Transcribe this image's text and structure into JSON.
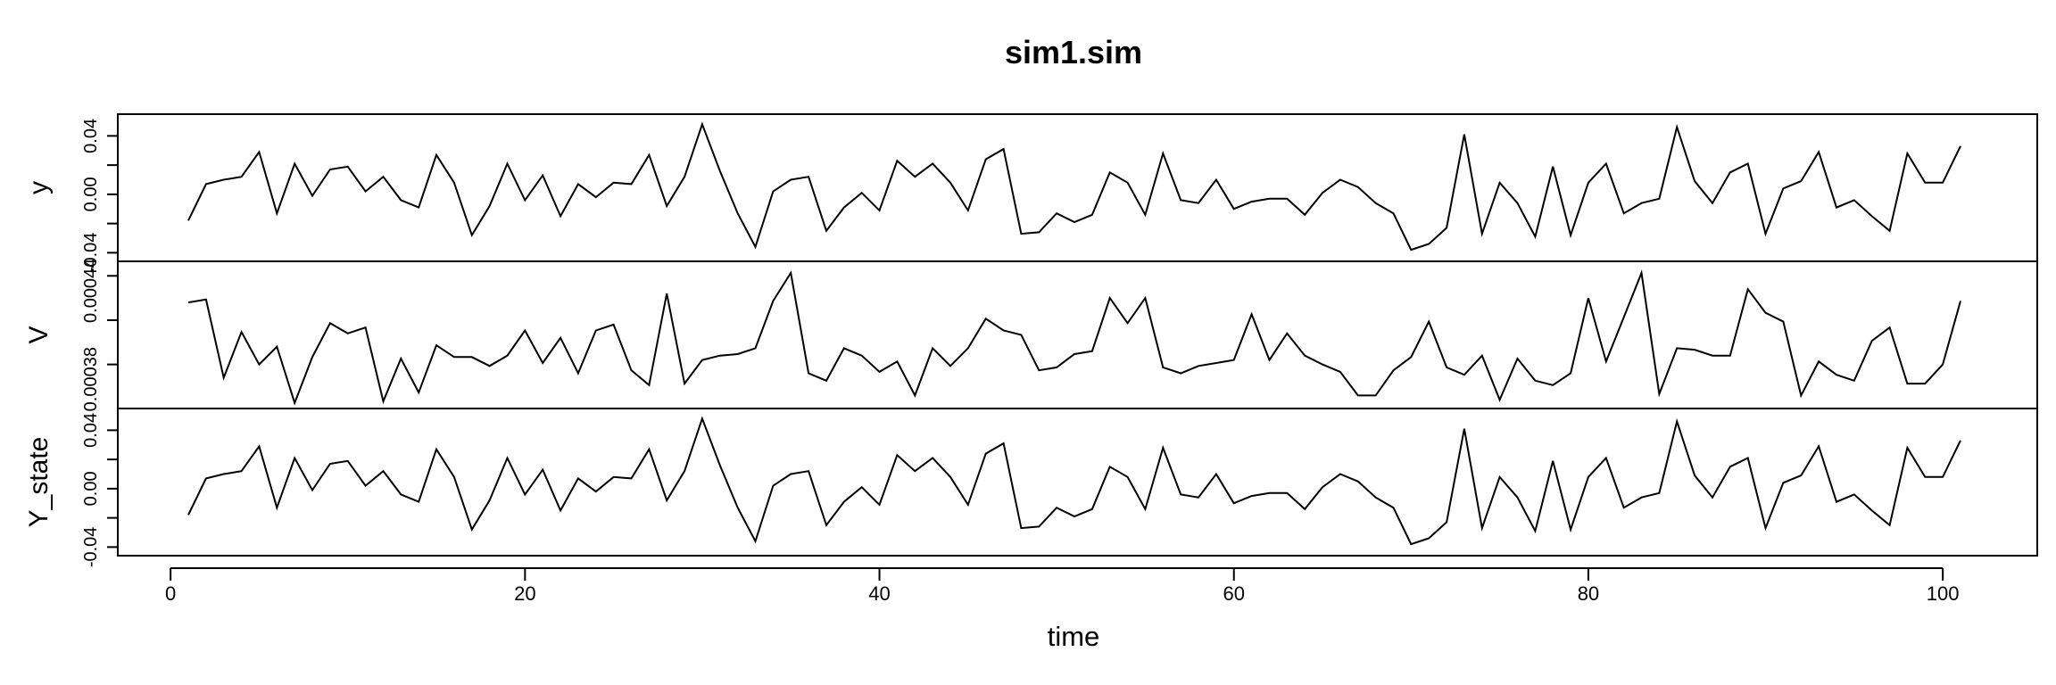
{
  "chart_data": {
    "type": "line",
    "title": "sim1.sim",
    "xlabel": "time",
    "x_ticks": [
      0,
      20,
      40,
      60,
      80,
      100
    ],
    "xlim": [
      1,
      101
    ],
    "x": [
      1,
      2,
      3,
      4,
      5,
      6,
      7,
      8,
      9,
      10,
      11,
      12,
      13,
      14,
      15,
      16,
      17,
      18,
      19,
      20,
      21,
      22,
      23,
      24,
      25,
      26,
      27,
      28,
      29,
      30,
      31,
      32,
      33,
      34,
      35,
      36,
      37,
      38,
      39,
      40,
      41,
      42,
      43,
      44,
      45,
      46,
      47,
      48,
      49,
      50,
      51,
      52,
      53,
      54,
      55,
      56,
      57,
      58,
      59,
      60,
      61,
      62,
      63,
      64,
      65,
      66,
      67,
      68,
      69,
      70,
      71,
      72,
      73,
      74,
      75,
      76,
      77,
      78,
      79,
      80,
      81,
      82,
      83,
      84,
      85,
      86,
      87,
      88,
      89,
      90,
      91,
      92,
      93,
      94,
      95,
      96,
      97,
      98,
      99,
      100,
      101
    ],
    "series": [
      {
        "name": "y",
        "ylim": [
          -0.041,
          0.05
        ],
        "y_ticks": [
          -0.04,
          0.0,
          0.04
        ],
        "y_tick_labels": [
          "-0.04",
          "0.00",
          "0.04"
        ],
        "values": [
          -0.018,
          0.007,
          0.01,
          0.012,
          0.029,
          -0.013,
          0.021,
          -0.001,
          0.017,
          0.019,
          0.002,
          0.012,
          -0.004,
          -0.009,
          0.027,
          0.008,
          -0.028,
          -0.008,
          0.021,
          -0.004,
          0.013,
          -0.015,
          0.007,
          -0.002,
          0.008,
          0.007,
          0.027,
          -0.008,
          0.012,
          0.048,
          0.016,
          -0.013,
          -0.036,
          0.002,
          0.01,
          0.012,
          -0.025,
          -0.009,
          0.001,
          -0.011,
          0.023,
          0.012,
          0.021,
          0.008,
          -0.011,
          0.024,
          0.031,
          -0.027,
          -0.026,
          -0.013,
          -0.019,
          -0.014,
          0.015,
          0.008,
          -0.014,
          0.028,
          -0.004,
          -0.006,
          0.01,
          -0.01,
          -0.005,
          -0.003,
          -0.003,
          -0.014,
          0.001,
          0.01,
          0.005,
          -0.006,
          -0.013,
          -0.038,
          -0.034,
          -0.023,
          0.041,
          -0.027,
          0.008,
          -0.006,
          -0.029,
          0.019,
          -0.028,
          0.008,
          0.021,
          -0.013,
          -0.006,
          -0.003,
          0.046,
          0.009,
          -0.006,
          0.015,
          0.021,
          -0.027,
          0.004,
          0.009,
          0.029,
          -0.009,
          -0.004,
          -0.015,
          -0.025,
          0.028,
          0.008,
          0.008,
          0.033
        ]
      },
      {
        "name": "V",
        "ylim": [
          0.000365,
          0.000455
        ],
        "y_ticks": [
          0.00038,
          0.00044
        ],
        "y_tick_labels": [
          "0.00038",
          "0.00044"
        ],
        "values": [
          0.000432,
          0.000434,
          0.000381,
          0.000412,
          0.00039,
          0.000402,
          0.000364,
          0.000395,
          0.000418,
          0.000411,
          0.000415,
          0.000365,
          0.000394,
          0.000371,
          0.000403,
          0.000395,
          0.000395,
          0.000389,
          0.000396,
          0.000413,
          0.000391,
          0.000408,
          0.000384,
          0.000413,
          0.000417,
          0.000386,
          0.000376,
          0.000438,
          0.000377,
          0.000393,
          0.000396,
          0.000397,
          0.000401,
          0.000433,
          0.000452,
          0.000384,
          0.000379,
          0.000401,
          0.000396,
          0.000385,
          0.000392,
          0.000369,
          0.000401,
          0.000389,
          0.000401,
          0.000421,
          0.000413,
          0.00041,
          0.000386,
          0.000388,
          0.000397,
          0.000399,
          0.000435,
          0.000418,
          0.000435,
          0.000388,
          0.000384,
          0.000389,
          0.000391,
          0.000393,
          0.000424,
          0.000393,
          0.000411,
          0.000396,
          0.00039,
          0.000385,
          0.000369,
          0.000369,
          0.000386,
          0.000395,
          0.000419,
          0.000388,
          0.000383,
          0.000396,
          0.000366,
          0.000394,
          0.000379,
          0.000376,
          0.000384,
          0.000435,
          0.000392,
          0.000422,
          0.000452,
          0.00037,
          0.000401,
          0.0004,
          0.000396,
          0.000396,
          0.000441,
          0.000425,
          0.000419,
          0.000369,
          0.000392,
          0.000383,
          0.000379,
          0.000406,
          0.000415,
          0.000377,
          0.000377,
          0.00039,
          0.000433
        ]
      },
      {
        "name": "Y_state",
        "ylim": [
          -0.041,
          0.05
        ],
        "y_ticks": [
          -0.04,
          0.0,
          0.04
        ],
        "y_tick_labels": [
          "-0.04",
          "0.00",
          "0.04"
        ],
        "values": [
          -0.018,
          0.007,
          0.01,
          0.012,
          0.029,
          -0.013,
          0.021,
          -0.001,
          0.017,
          0.019,
          0.002,
          0.012,
          -0.004,
          -0.009,
          0.027,
          0.008,
          -0.028,
          -0.008,
          0.021,
          -0.004,
          0.013,
          -0.015,
          0.007,
          -0.002,
          0.008,
          0.007,
          0.027,
          -0.008,
          0.012,
          0.048,
          0.016,
          -0.013,
          -0.036,
          0.002,
          0.01,
          0.012,
          -0.025,
          -0.009,
          0.001,
          -0.011,
          0.023,
          0.012,
          0.021,
          0.008,
          -0.011,
          0.024,
          0.031,
          -0.027,
          -0.026,
          -0.013,
          -0.019,
          -0.014,
          0.015,
          0.008,
          -0.014,
          0.028,
          -0.004,
          -0.006,
          0.01,
          -0.01,
          -0.005,
          -0.003,
          -0.003,
          -0.014,
          0.001,
          0.01,
          0.005,
          -0.006,
          -0.013,
          -0.038,
          -0.034,
          -0.023,
          0.041,
          -0.027,
          0.008,
          -0.006,
          -0.029,
          0.019,
          -0.028,
          0.008,
          0.021,
          -0.013,
          -0.006,
          -0.003,
          0.046,
          0.009,
          -0.006,
          0.015,
          0.021,
          -0.027,
          0.004,
          0.009,
          0.029,
          -0.009,
          -0.004,
          -0.015,
          -0.025,
          0.028,
          0.008,
          0.008,
          0.033
        ]
      }
    ]
  }
}
